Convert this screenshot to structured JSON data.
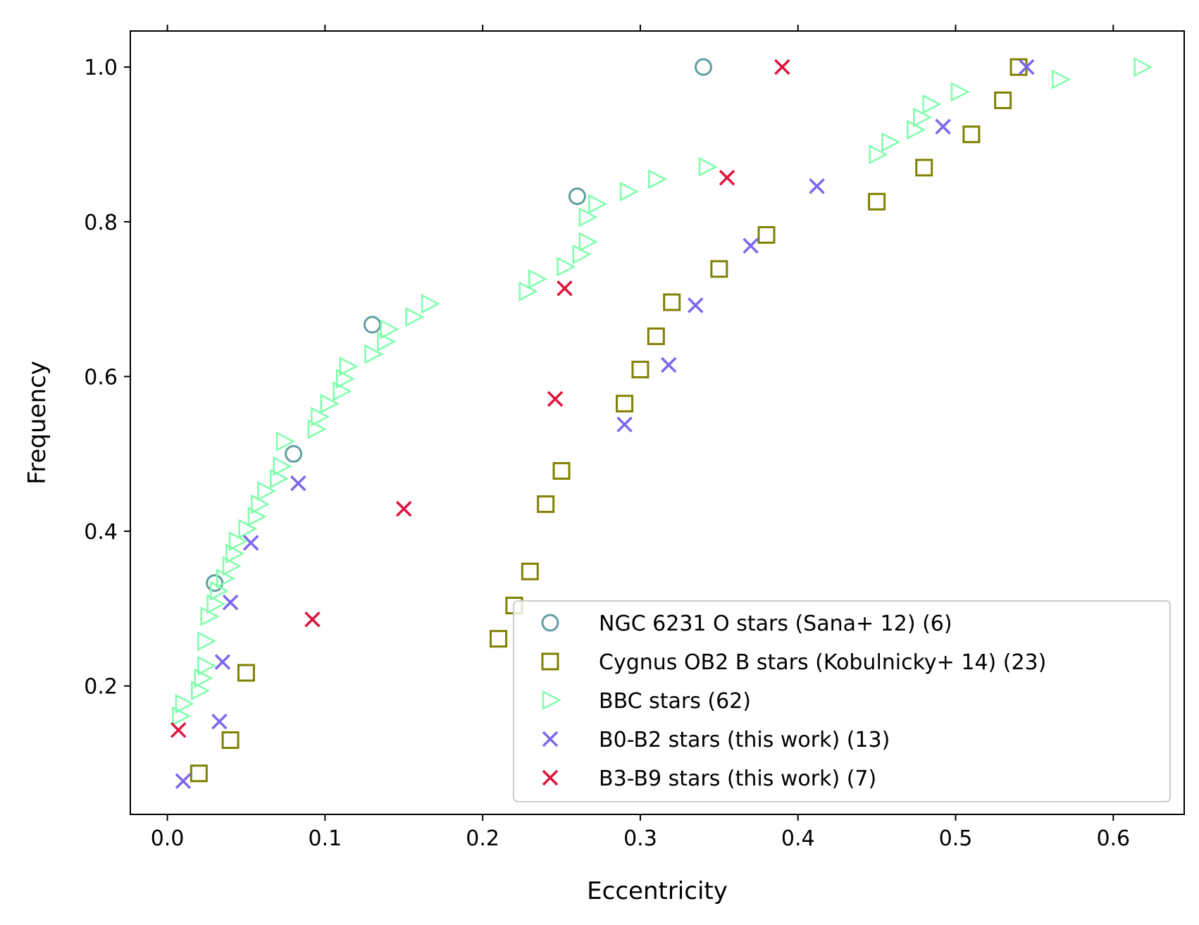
{
  "chart_data": {
    "type": "scatter",
    "title": "",
    "xlabel": "Eccentricity",
    "ylabel": "Frequency",
    "xlim": [
      -0.0235,
      0.645
    ],
    "ylim": [
      0.034,
      1.0466
    ],
    "x_ticks": [
      {
        "value": 0.0,
        "label": "0.0"
      },
      {
        "value": 0.1,
        "label": "0.1"
      },
      {
        "value": 0.2,
        "label": "0.2"
      },
      {
        "value": 0.3,
        "label": "0.3"
      },
      {
        "value": 0.4,
        "label": "0.4"
      },
      {
        "value": 0.5,
        "label": "0.5"
      },
      {
        "value": 0.6,
        "label": "0.6"
      }
    ],
    "y_ticks": [
      {
        "value": 0.2,
        "label": "0.2"
      },
      {
        "value": 0.4,
        "label": "0.4"
      },
      {
        "value": 0.6,
        "label": "0.6"
      },
      {
        "value": 0.8,
        "label": "0.8"
      },
      {
        "value": 1.0,
        "label": "1.0"
      }
    ],
    "grid": false,
    "legend_position": "lower-right",
    "series": [
      {
        "name": "NGC 6231 O stars (Sana+ 12) (6)",
        "marker": "circle",
        "color": "#5f9ea0",
        "points": [
          [
            0.03,
            0.333
          ],
          [
            0.08,
            0.5
          ],
          [
            0.13,
            0.667
          ],
          [
            0.26,
            0.833
          ],
          [
            0.34,
            1.0
          ]
        ]
      },
      {
        "name": "Cygnus OB2 B stars (Kobulnicky+ 14) (23)",
        "marker": "square",
        "color": "#808000",
        "points": [
          [
            0.02,
            0.087
          ],
          [
            0.04,
            0.13
          ],
          [
            0.05,
            0.217
          ],
          [
            0.21,
            0.261
          ],
          [
            0.22,
            0.304
          ],
          [
            0.23,
            0.348
          ],
          [
            0.24,
            0.435
          ],
          [
            0.25,
            0.478
          ],
          [
            0.29,
            0.565
          ],
          [
            0.3,
            0.609
          ],
          [
            0.31,
            0.652
          ],
          [
            0.32,
            0.696
          ],
          [
            0.35,
            0.739
          ],
          [
            0.38,
            0.783
          ],
          [
            0.45,
            0.826
          ],
          [
            0.48,
            0.87
          ],
          [
            0.51,
            0.913
          ],
          [
            0.53,
            0.957
          ],
          [
            0.54,
            1.0
          ]
        ]
      },
      {
        "name": "BBC stars (62)",
        "marker": "triangle-right",
        "color": "#7fffaa",
        "points": [
          [
            0.008,
            0.161
          ],
          [
            0.01,
            0.177
          ],
          [
            0.02,
            0.194
          ],
          [
            0.022,
            0.21
          ],
          [
            0.024,
            0.226
          ],
          [
            0.024,
            0.258
          ],
          [
            0.026,
            0.29
          ],
          [
            0.03,
            0.306
          ],
          [
            0.032,
            0.323
          ],
          [
            0.036,
            0.339
          ],
          [
            0.04,
            0.355
          ],
          [
            0.042,
            0.371
          ],
          [
            0.044,
            0.387
          ],
          [
            0.05,
            0.403
          ],
          [
            0.056,
            0.419
          ],
          [
            0.058,
            0.435
          ],
          [
            0.062,
            0.452
          ],
          [
            0.07,
            0.468
          ],
          [
            0.072,
            0.484
          ],
          [
            0.074,
            0.516
          ],
          [
            0.094,
            0.532
          ],
          [
            0.096,
            0.548
          ],
          [
            0.102,
            0.565
          ],
          [
            0.11,
            0.581
          ],
          [
            0.112,
            0.597
          ],
          [
            0.114,
            0.613
          ],
          [
            0.13,
            0.629
          ],
          [
            0.138,
            0.645
          ],
          [
            0.14,
            0.661
          ],
          [
            0.156,
            0.677
          ],
          [
            0.166,
            0.694
          ],
          [
            0.228,
            0.71
          ],
          [
            0.234,
            0.726
          ],
          [
            0.252,
            0.742
          ],
          [
            0.262,
            0.758
          ],
          [
            0.266,
            0.774
          ],
          [
            0.266,
            0.806
          ],
          [
            0.272,
            0.823
          ],
          [
            0.292,
            0.839
          ],
          [
            0.31,
            0.855
          ],
          [
            0.342,
            0.871
          ],
          [
            0.45,
            0.887
          ],
          [
            0.458,
            0.903
          ],
          [
            0.474,
            0.919
          ],
          [
            0.478,
            0.935
          ],
          [
            0.484,
            0.952
          ],
          [
            0.502,
            0.968
          ],
          [
            0.566,
            0.984
          ],
          [
            0.618,
            1.0
          ]
        ]
      },
      {
        "name": "B0-B2 stars (this work) (13)",
        "marker": "x",
        "color": "#7b68ee",
        "points": [
          [
            0.01,
            0.077
          ],
          [
            0.033,
            0.154
          ],
          [
            0.035,
            0.231
          ],
          [
            0.04,
            0.308
          ],
          [
            0.053,
            0.385
          ],
          [
            0.083,
            0.462
          ],
          [
            0.29,
            0.538
          ],
          [
            0.318,
            0.615
          ],
          [
            0.335,
            0.692
          ],
          [
            0.37,
            0.769
          ],
          [
            0.412,
            0.846
          ],
          [
            0.492,
            0.923
          ],
          [
            0.545,
            1.0
          ]
        ]
      },
      {
        "name": "B3-B9 stars (this work) (7)",
        "marker": "x",
        "color": "#dc143c",
        "points": [
          [
            0.007,
            0.143
          ],
          [
            0.092,
            0.286
          ],
          [
            0.15,
            0.429
          ],
          [
            0.246,
            0.571
          ],
          [
            0.252,
            0.714
          ],
          [
            0.355,
            0.857
          ],
          [
            0.39,
            1.0
          ]
        ]
      }
    ]
  }
}
